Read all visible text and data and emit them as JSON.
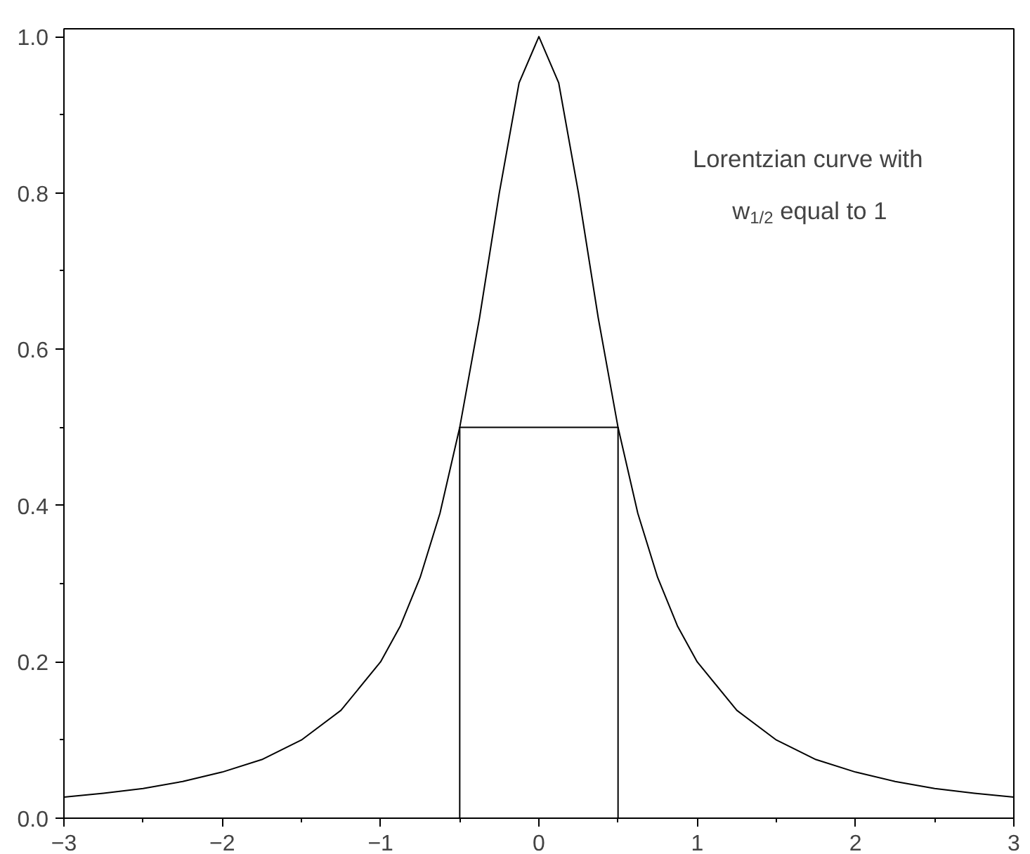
{
  "chart_data": {
    "type": "line",
    "series": [
      {
        "color": "#000000",
        "x": [
          -3,
          -2.75,
          -2.5,
          -2.25,
          -2,
          -1.75,
          -1.5,
          -1.25,
          -1,
          -0.875,
          -0.75,
          -0.625,
          -0.5,
          -0.375,
          -0.25,
          -0.125,
          0,
          0.125,
          0.25,
          0.375,
          0.5,
          0.625,
          0.75,
          0.875,
          1,
          1.25,
          1.5,
          1.75,
          2,
          2.25,
          2.5,
          2.75,
          3
        ],
        "values": [
          0.027,
          0.032,
          0.038,
          0.047,
          0.059,
          0.075,
          0.1,
          0.138,
          0.2,
          0.246,
          0.308,
          0.39,
          0.5,
          0.64,
          0.8,
          0.941,
          1.0,
          0.941,
          0.8,
          0.64,
          0.5,
          0.39,
          0.308,
          0.246,
          0.2,
          0.138,
          0.1,
          0.075,
          0.059,
          0.047,
          0.038,
          0.032,
          0.027
        ]
      },
      {
        "type": "bar",
        "color": "#000000",
        "x": [
          0
        ],
        "values": [
          0.5
        ]
      }
    ],
    "xlim": [
      -3,
      3
    ],
    "xticks": [
      -3,
      -2,
      -1,
      0,
      1,
      2,
      3
    ],
    "ylim": [
      0,
      1.01
    ],
    "yticks": [
      {
        "value": 0,
        "label": "0.0"
      },
      {
        "value": 0.2,
        "label": "0.2"
      },
      {
        "value": 0.4,
        "label": "0.4"
      },
      {
        "value": 0.6,
        "label": "0.6"
      },
      {
        "value": 0.8,
        "label": "0.8"
      },
      {
        "value": 1,
        "label": "1.0"
      }
    ],
    "annotations": [
      "Lorentzian curve with w$_{1/2}$ equal to 1"
    ],
    "grid": false
  }
}
